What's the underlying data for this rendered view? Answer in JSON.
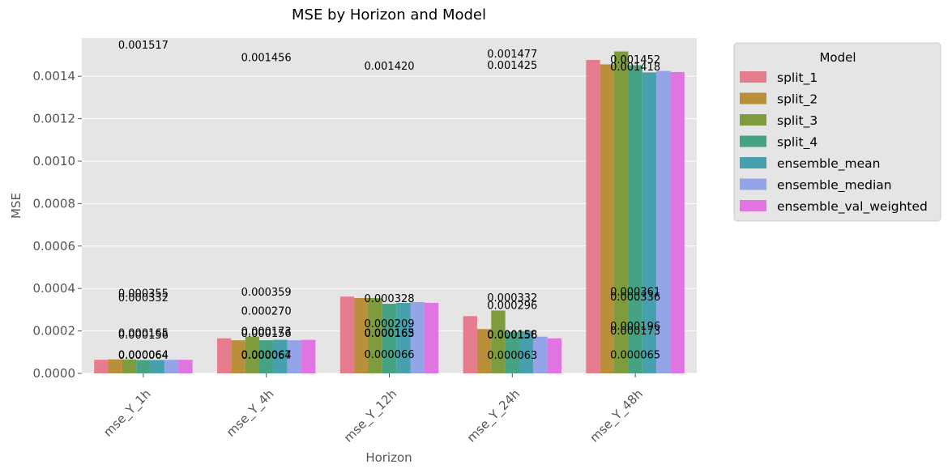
{
  "chart_data": {
    "type": "bar",
    "title": "MSE by Horizon and Model",
    "xlabel": "Horizon",
    "ylabel": "MSE",
    "ylim": [
      0,
      0.00158
    ],
    "yticks": [
      "0.0000",
      "0.0002",
      "0.0004",
      "0.0006",
      "0.0008",
      "0.0010",
      "0.0012",
      "0.0014"
    ],
    "categories": [
      "mse_Y_1h",
      "mse_Y_4h",
      "mse_Y_12h",
      "mse_Y_24h",
      "mse_Y_48h"
    ],
    "grid": true,
    "legend": {
      "title": "Model",
      "placement": "outside-right"
    },
    "series": [
      {
        "name": "split_1",
        "color": "#e67d8e",
        "values": [
          6.4e-05,
          0.000165,
          0.000362,
          0.00027,
          0.001477
        ]
      },
      {
        "name": "split_2",
        "color": "#b98f3a",
        "values": [
          6.6e-05,
          0.000156,
          0.000355,
          0.000209,
          0.001456
        ]
      },
      {
        "name": "split_3",
        "color": "#7e9c3e",
        "values": [
          6.6e-05,
          0.000173,
          0.000355,
          0.000296,
          0.001517
        ]
      },
      {
        "name": "split_4",
        "color": "#45a384",
        "values": [
          6.3e-05,
          0.000156,
          0.000328,
          0.000196,
          0.001452
        ]
      },
      {
        "name": "ensemble_mean",
        "color": "#47a0ad",
        "values": [
          6.3e-05,
          0.000158,
          0.000332,
          0.0002,
          0.001418
        ]
      },
      {
        "name": "ensemble_median",
        "color": "#93a5e8",
        "values": [
          6.4e-05,
          0.000156,
          0.000336,
          0.000173,
          0.001425
        ]
      },
      {
        "name": "ensemble_val_weighted",
        "color": "#e074e0",
        "values": [
          6.4e-05,
          0.000158,
          0.000332,
          0.000165,
          0.00142
        ]
      }
    ],
    "annotations": [
      {
        "text": "0.001517",
        "x": "mse_Y_1h",
        "y": 0.00155
      },
      {
        "text": "0.000355",
        "x": "mse_Y_1h",
        "y": 0.00038
      },
      {
        "text": "0.000332",
        "x": "mse_Y_1h",
        "y": 0.000358
      },
      {
        "text": "0.000165",
        "x": "mse_Y_1h",
        "y": 0.000192
      },
      {
        "text": "0.000156",
        "x": "mse_Y_1h",
        "y": 0.000183
      },
      {
        "text": "0.000064",
        "x": "mse_Y_1h",
        "y": 9e-05
      },
      {
        "text": "0.000064",
        "x": "mse_Y_1h",
        "y": 8.8e-05
      },
      {
        "text": "0.001456",
        "x": "mse_Y_4h",
        "y": 0.00149
      },
      {
        "text": "0.000359",
        "x": "mse_Y_4h",
        "y": 0.000385
      },
      {
        "text": "0.000270",
        "x": "mse_Y_4h",
        "y": 0.000296
      },
      {
        "text": "0.000173",
        "x": "mse_Y_4h",
        "y": 0.0002
      },
      {
        "text": "0.000156",
        "x": "mse_Y_4h",
        "y": 0.00019
      },
      {
        "text": "0.000067",
        "x": "mse_Y_4h",
        "y": 9e-05
      },
      {
        "text": "0.000064",
        "x": "mse_Y_4h",
        "y": 8.8e-05
      },
      {
        "text": "0.001420",
        "x": "mse_Y_12h",
        "y": 0.00145
      },
      {
        "text": "0.000328",
        "x": "mse_Y_12h",
        "y": 0.000355
      },
      {
        "text": "0.000209",
        "x": "mse_Y_12h",
        "y": 0.000236
      },
      {
        "text": "0.000165",
        "x": "mse_Y_12h",
        "y": 0.000192
      },
      {
        "text": "0.000163",
        "x": "mse_Y_12h",
        "y": 0.00019
      },
      {
        "text": "0.000066",
        "x": "mse_Y_12h",
        "y": 9.2e-05
      },
      {
        "text": "0.001477",
        "x": "mse_Y_24h",
        "y": 0.001507
      },
      {
        "text": "0.001425",
        "x": "mse_Y_24h",
        "y": 0.001455
      },
      {
        "text": "0.000332",
        "x": "mse_Y_24h",
        "y": 0.000358
      },
      {
        "text": "0.000296",
        "x": "mse_Y_24h",
        "y": 0.000322
      },
      {
        "text": "0.000158",
        "x": "mse_Y_24h",
        "y": 0.000186
      },
      {
        "text": "0.000156",
        "x": "mse_Y_24h",
        "y": 0.000183
      },
      {
        "text": "0.000063",
        "x": "mse_Y_24h",
        "y": 8.8e-05
      },
      {
        "text": "0.001452",
        "x": "mse_Y_48h",
        "y": 0.00148
      },
      {
        "text": "0.001418",
        "x": "mse_Y_48h",
        "y": 0.001446
      },
      {
        "text": "0.000361",
        "x": "mse_Y_48h",
        "y": 0.000388
      },
      {
        "text": "0.000336",
        "x": "mse_Y_48h",
        "y": 0.000362
      },
      {
        "text": "0.000196",
        "x": "mse_Y_48h",
        "y": 0.000225
      },
      {
        "text": "0.000173",
        "x": "mse_Y_48h",
        "y": 0.000202
      },
      {
        "text": "0.000065",
        "x": "mse_Y_48h",
        "y": 9e-05
      }
    ]
  }
}
